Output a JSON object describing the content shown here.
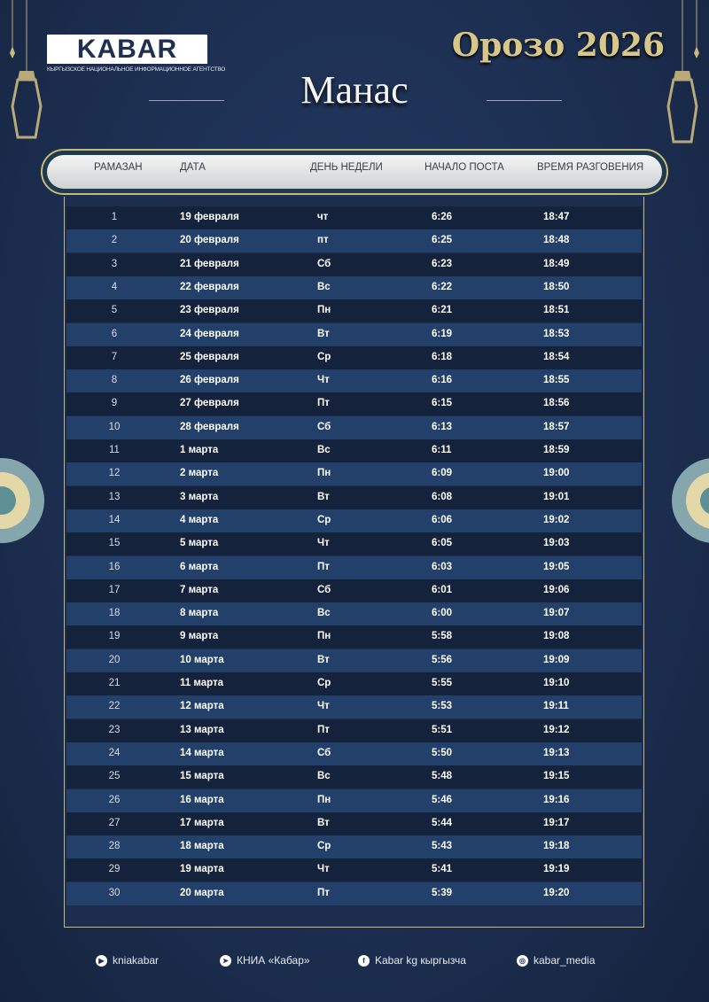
{
  "logo": {
    "name": "KABAR",
    "subtitle": "КЫРГЫЗСКОЕ НАЦИОНАЛЬНОЕ ИНФОРМАЦИОННОЕ АГЕНТСТВО"
  },
  "title": "Орозо 2026",
  "city": "Манас",
  "columns": [
    "РАМАЗАН",
    "ДАТА",
    "ДЕНЬ НЕДЕЛИ",
    "НАЧАЛО ПОСТА",
    "ВРЕМЯ РАЗГОВЕНИЯ"
  ],
  "rows": [
    [
      "1",
      "19 февраля",
      "чт",
      "6:26",
      "18:47"
    ],
    [
      "2",
      "20 февраля",
      "пт",
      "6:25",
      "18:48"
    ],
    [
      "3",
      "21 февраля",
      "Сб",
      "6:23",
      "18:49"
    ],
    [
      "4",
      "22 февраля",
      "Вс",
      "6:22",
      "18:50"
    ],
    [
      "5",
      "23 февраля",
      "Пн",
      "6:21",
      "18:51"
    ],
    [
      "6",
      "24 февраля",
      "Вт",
      "6:19",
      "18:53"
    ],
    [
      "7",
      "25 февраля",
      "Ср",
      "6:18",
      "18:54"
    ],
    [
      "8",
      "26 февраля",
      "Чт",
      "6:16",
      "18:55"
    ],
    [
      "9",
      "27 февраля",
      "Пт",
      "6:15",
      "18:56"
    ],
    [
      "10",
      "28 февраля",
      "Сб",
      "6:13",
      "18:57"
    ],
    [
      "11",
      "1 марта",
      "Вс",
      "6:11",
      "18:59"
    ],
    [
      "12",
      "2 марта",
      "Пн",
      "6:09",
      "19:00"
    ],
    [
      "13",
      "3 марта",
      "Вт",
      "6:08",
      "19:01"
    ],
    [
      "14",
      "4 марта",
      "Ср",
      "6:06",
      "19:02"
    ],
    [
      "15",
      "5 марта",
      "Чт",
      "6:05",
      "19:03"
    ],
    [
      "16",
      "6 марта",
      "Пт",
      "6:03",
      "19:05"
    ],
    [
      "17",
      "7 марта",
      "Сб",
      "6:01",
      "19:06"
    ],
    [
      "18",
      "8 марта",
      "Вс",
      "6:00",
      "19:07"
    ],
    [
      "19",
      "9 марта",
      "Пн",
      "5:58",
      "19:08"
    ],
    [
      "20",
      "10 марта",
      "Вт",
      "5:56",
      "19:09"
    ],
    [
      "21",
      "11 марта",
      "Ср",
      "5:55",
      "19:10"
    ],
    [
      "22",
      "12 марта",
      "Чт",
      "5:53",
      "19:11"
    ],
    [
      "23",
      "13 марта",
      "Пт",
      "5:51",
      "19:12"
    ],
    [
      "24",
      "14 марта",
      "Сб",
      "5:50",
      "19:13"
    ],
    [
      "25",
      "15 марта",
      "Вс",
      "5:48",
      "19:15"
    ],
    [
      "26",
      "16 марта",
      "Пн",
      "5:46",
      "19:16"
    ],
    [
      "27",
      "17 марта",
      "Вт",
      "5:44",
      "19:17"
    ],
    [
      "28",
      "18 марта",
      "Ср",
      "5:43",
      "19:18"
    ],
    [
      "29",
      "19 марта",
      "Чт",
      "5:41",
      "19:19"
    ],
    [
      "30",
      "20 марта",
      "Пт",
      "5:39",
      "19:20"
    ]
  ],
  "footer": [
    {
      "icon": "youtube-icon",
      "label": "kniakabar"
    },
    {
      "icon": "telegram-icon",
      "label": "КНИА «Кабар»"
    },
    {
      "icon": "facebook-icon",
      "label": "Kabar kg кыргызча"
    },
    {
      "icon": "instagram-icon",
      "label": "kabar_media"
    }
  ],
  "colors": {
    "background": "#1c2e50",
    "accent_gold": "#c9b77a",
    "title_gold": "#d9c78a"
  }
}
